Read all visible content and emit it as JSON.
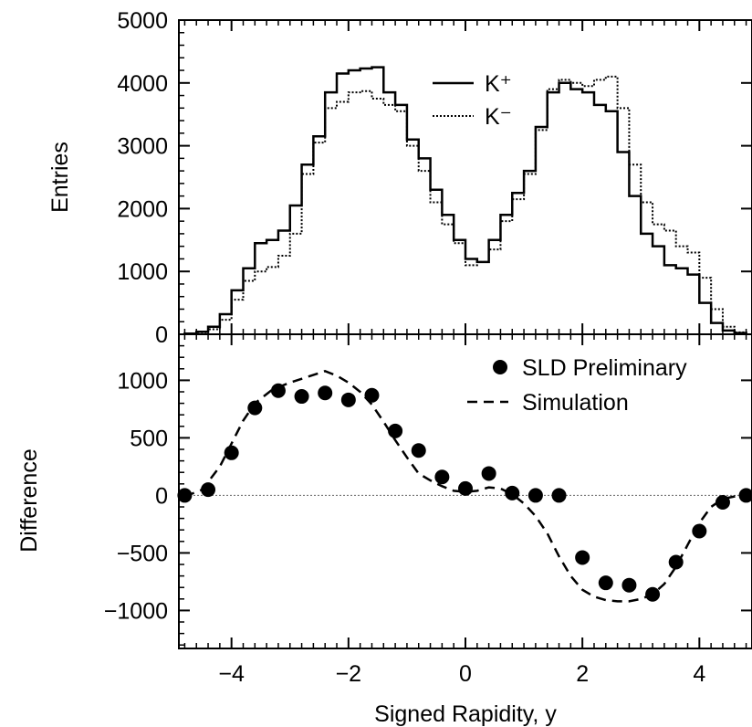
{
  "chart_data": [
    {
      "type": "line",
      "panel": "top",
      "ylabel": "Entries",
      "xlim": [
        -4.9,
        4.9
      ],
      "ylim": [
        0,
        5000
      ],
      "yticks": [
        0,
        1000,
        2000,
        3000,
        4000,
        5000
      ],
      "x_bin_edges": [
        -4.8,
        -4.6,
        -4.4,
        -4.2,
        -4.0,
        -3.8,
        -3.6,
        -3.4,
        -3.2,
        -3.0,
        -2.8,
        -2.6,
        -2.4,
        -2.2,
        -2.0,
        -1.8,
        -1.6,
        -1.4,
        -1.2,
        -1.0,
        -0.8,
        -0.6,
        -0.4,
        -0.2,
        0.0,
        0.2,
        0.4,
        0.6,
        0.8,
        1.0,
        1.2,
        1.4,
        1.6,
        1.8,
        2.0,
        2.2,
        2.4,
        2.6,
        2.8,
        3.0,
        3.2,
        3.4,
        3.6,
        3.8,
        4.0,
        4.2,
        4.4,
        4.6,
        4.8
      ],
      "series": [
        {
          "name": "K⁺",
          "style": "solid",
          "values": [
            10,
            40,
            120,
            320,
            700,
            1050,
            1450,
            1500,
            1650,
            2050,
            2700,
            3150,
            3850,
            4150,
            4200,
            4230,
            4250,
            3850,
            3650,
            3100,
            2800,
            2300,
            1900,
            1500,
            1200,
            1150,
            1500,
            1900,
            2250,
            2600,
            3300,
            3850,
            4000,
            3900,
            3850,
            3650,
            3550,
            2900,
            2200,
            1600,
            1400,
            1100,
            1050,
            950,
            500,
            180,
            60,
            20
          ]
        },
        {
          "name": "K⁻",
          "style": "dotted",
          "values": [
            10,
            30,
            80,
            230,
            550,
            850,
            1000,
            1070,
            1250,
            1600,
            2550,
            3050,
            3600,
            3700,
            3850,
            3870,
            3750,
            3650,
            3550,
            3000,
            2600,
            2100,
            1750,
            1450,
            1100,
            1150,
            1350,
            1800,
            2150,
            2550,
            3250,
            3900,
            4050,
            4000,
            3950,
            4050,
            4100,
            3600,
            2700,
            2100,
            1750,
            1650,
            1400,
            1300,
            900,
            400,
            120,
            30
          ]
        }
      ]
    },
    {
      "type": "scatter",
      "panel": "bottom",
      "ylabel": "Difference",
      "xlabel": "Signed Rapidity,  y",
      "xlim": [
        -4.9,
        4.9
      ],
      "ylim": [
        -1330,
        1400
      ],
      "yticks": [
        -1000,
        -500,
        0,
        500,
        1000
      ],
      "ytick_labels": [
        "−1000",
        "−500",
        "0",
        "500",
        "1000"
      ],
      "xticks": [
        -4,
        -2,
        0,
        2,
        4
      ],
      "xtick_labels": [
        "−4",
        "−2",
        "0",
        "2",
        "4"
      ],
      "series": [
        {
          "name": "SLD Preliminary",
          "style": "filled-circle",
          "x": [
            -4.8,
            -4.4,
            -4.0,
            -3.6,
            -3.2,
            -2.8,
            -2.4,
            -2.0,
            -1.6,
            -1.2,
            -0.8,
            -0.4,
            0.0,
            0.4,
            0.8,
            1.2,
            1.6,
            2.0,
            2.4,
            2.8,
            3.2,
            3.6,
            4.0,
            4.4,
            4.8
          ],
          "y": [
            0,
            50,
            370,
            760,
            910,
            860,
            890,
            830,
            870,
            560,
            390,
            160,
            60,
            190,
            20,
            0,
            0,
            -540,
            -760,
            -780,
            -860,
            -580,
            -310,
            -60,
            0
          ]
        },
        {
          "name": "Simulation",
          "style": "dashed",
          "x": [
            -4.8,
            -4.5,
            -4.2,
            -4.0,
            -3.8,
            -3.6,
            -3.3,
            -3.0,
            -2.7,
            -2.4,
            -2.2,
            -2.0,
            -1.8,
            -1.6,
            -1.4,
            -1.2,
            -1.0,
            -0.8,
            -0.6,
            -0.4,
            -0.2,
            0.0,
            0.2,
            0.4,
            0.6,
            0.8,
            1.0,
            1.2,
            1.4,
            1.6,
            1.8,
            2.0,
            2.2,
            2.4,
            2.6,
            2.8,
            3.0,
            3.2,
            3.4,
            3.6,
            3.8,
            4.0,
            4.2,
            4.4,
            4.6,
            4.8
          ],
          "y": [
            -10,
            50,
            250,
            450,
            650,
            800,
            920,
            980,
            1030,
            1080,
            1040,
            980,
            900,
            790,
            640,
            480,
            330,
            190,
            130,
            80,
            40,
            30,
            40,
            70,
            60,
            10,
            -70,
            -180,
            -330,
            -530,
            -700,
            -820,
            -880,
            -910,
            -920,
            -920,
            -900,
            -860,
            -770,
            -620,
            -430,
            -240,
            -100,
            -30,
            -10,
            0
          ]
        }
      ]
    }
  ]
}
